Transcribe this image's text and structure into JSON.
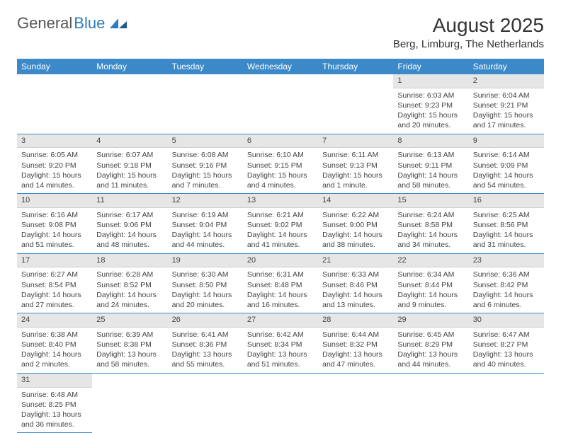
{
  "logo": {
    "text1": "General",
    "text2": "Blue"
  },
  "title": "August 2025",
  "location": "Berg, Limburg, The Netherlands",
  "colors": {
    "header_bg": "#3b89c9",
    "header_text": "#ffffff",
    "daynum_bg": "#e6e6e6",
    "border": "#3b89c9",
    "text": "#444444",
    "logo_blue": "#2f7bbf"
  },
  "day_headers": [
    "Sunday",
    "Monday",
    "Tuesday",
    "Wednesday",
    "Thursday",
    "Friday",
    "Saturday"
  ],
  "weeks": [
    [
      null,
      null,
      null,
      null,
      null,
      {
        "n": "1",
        "sr": "Sunrise: 6:03 AM",
        "ss": "Sunset: 9:23 PM",
        "dl1": "Daylight: 15 hours",
        "dl2": "and 20 minutes."
      },
      {
        "n": "2",
        "sr": "Sunrise: 6:04 AM",
        "ss": "Sunset: 9:21 PM",
        "dl1": "Daylight: 15 hours",
        "dl2": "and 17 minutes."
      }
    ],
    [
      {
        "n": "3",
        "sr": "Sunrise: 6:05 AM",
        "ss": "Sunset: 9:20 PM",
        "dl1": "Daylight: 15 hours",
        "dl2": "and 14 minutes."
      },
      {
        "n": "4",
        "sr": "Sunrise: 6:07 AM",
        "ss": "Sunset: 9:18 PM",
        "dl1": "Daylight: 15 hours",
        "dl2": "and 11 minutes."
      },
      {
        "n": "5",
        "sr": "Sunrise: 6:08 AM",
        "ss": "Sunset: 9:16 PM",
        "dl1": "Daylight: 15 hours",
        "dl2": "and 7 minutes."
      },
      {
        "n": "6",
        "sr": "Sunrise: 6:10 AM",
        "ss": "Sunset: 9:15 PM",
        "dl1": "Daylight: 15 hours",
        "dl2": "and 4 minutes."
      },
      {
        "n": "7",
        "sr": "Sunrise: 6:11 AM",
        "ss": "Sunset: 9:13 PM",
        "dl1": "Daylight: 15 hours",
        "dl2": "and 1 minute."
      },
      {
        "n": "8",
        "sr": "Sunrise: 6:13 AM",
        "ss": "Sunset: 9:11 PM",
        "dl1": "Daylight: 14 hours",
        "dl2": "and 58 minutes."
      },
      {
        "n": "9",
        "sr": "Sunrise: 6:14 AM",
        "ss": "Sunset: 9:09 PM",
        "dl1": "Daylight: 14 hours",
        "dl2": "and 54 minutes."
      }
    ],
    [
      {
        "n": "10",
        "sr": "Sunrise: 6:16 AM",
        "ss": "Sunset: 9:08 PM",
        "dl1": "Daylight: 14 hours",
        "dl2": "and 51 minutes."
      },
      {
        "n": "11",
        "sr": "Sunrise: 6:17 AM",
        "ss": "Sunset: 9:06 PM",
        "dl1": "Daylight: 14 hours",
        "dl2": "and 48 minutes."
      },
      {
        "n": "12",
        "sr": "Sunrise: 6:19 AM",
        "ss": "Sunset: 9:04 PM",
        "dl1": "Daylight: 14 hours",
        "dl2": "and 44 minutes."
      },
      {
        "n": "13",
        "sr": "Sunrise: 6:21 AM",
        "ss": "Sunset: 9:02 PM",
        "dl1": "Daylight: 14 hours",
        "dl2": "and 41 minutes."
      },
      {
        "n": "14",
        "sr": "Sunrise: 6:22 AM",
        "ss": "Sunset: 9:00 PM",
        "dl1": "Daylight: 14 hours",
        "dl2": "and 38 minutes."
      },
      {
        "n": "15",
        "sr": "Sunrise: 6:24 AM",
        "ss": "Sunset: 8:58 PM",
        "dl1": "Daylight: 14 hours",
        "dl2": "and 34 minutes."
      },
      {
        "n": "16",
        "sr": "Sunrise: 6:25 AM",
        "ss": "Sunset: 8:56 PM",
        "dl1": "Daylight: 14 hours",
        "dl2": "and 31 minutes."
      }
    ],
    [
      {
        "n": "17",
        "sr": "Sunrise: 6:27 AM",
        "ss": "Sunset: 8:54 PM",
        "dl1": "Daylight: 14 hours",
        "dl2": "and 27 minutes."
      },
      {
        "n": "18",
        "sr": "Sunrise: 6:28 AM",
        "ss": "Sunset: 8:52 PM",
        "dl1": "Daylight: 14 hours",
        "dl2": "and 24 minutes."
      },
      {
        "n": "19",
        "sr": "Sunrise: 6:30 AM",
        "ss": "Sunset: 8:50 PM",
        "dl1": "Daylight: 14 hours",
        "dl2": "and 20 minutes."
      },
      {
        "n": "20",
        "sr": "Sunrise: 6:31 AM",
        "ss": "Sunset: 8:48 PM",
        "dl1": "Daylight: 14 hours",
        "dl2": "and 16 minutes."
      },
      {
        "n": "21",
        "sr": "Sunrise: 6:33 AM",
        "ss": "Sunset: 8:46 PM",
        "dl1": "Daylight: 14 hours",
        "dl2": "and 13 minutes."
      },
      {
        "n": "22",
        "sr": "Sunrise: 6:34 AM",
        "ss": "Sunset: 8:44 PM",
        "dl1": "Daylight: 14 hours",
        "dl2": "and 9 minutes."
      },
      {
        "n": "23",
        "sr": "Sunrise: 6:36 AM",
        "ss": "Sunset: 8:42 PM",
        "dl1": "Daylight: 14 hours",
        "dl2": "and 6 minutes."
      }
    ],
    [
      {
        "n": "24",
        "sr": "Sunrise: 6:38 AM",
        "ss": "Sunset: 8:40 PM",
        "dl1": "Daylight: 14 hours",
        "dl2": "and 2 minutes."
      },
      {
        "n": "25",
        "sr": "Sunrise: 6:39 AM",
        "ss": "Sunset: 8:38 PM",
        "dl1": "Daylight: 13 hours",
        "dl2": "and 58 minutes."
      },
      {
        "n": "26",
        "sr": "Sunrise: 6:41 AM",
        "ss": "Sunset: 8:36 PM",
        "dl1": "Daylight: 13 hours",
        "dl2": "and 55 minutes."
      },
      {
        "n": "27",
        "sr": "Sunrise: 6:42 AM",
        "ss": "Sunset: 8:34 PM",
        "dl1": "Daylight: 13 hours",
        "dl2": "and 51 minutes."
      },
      {
        "n": "28",
        "sr": "Sunrise: 6:44 AM",
        "ss": "Sunset: 8:32 PM",
        "dl1": "Daylight: 13 hours",
        "dl2": "and 47 minutes."
      },
      {
        "n": "29",
        "sr": "Sunrise: 6:45 AM",
        "ss": "Sunset: 8:29 PM",
        "dl1": "Daylight: 13 hours",
        "dl2": "and 44 minutes."
      },
      {
        "n": "30",
        "sr": "Sunrise: 6:47 AM",
        "ss": "Sunset: 8:27 PM",
        "dl1": "Daylight: 13 hours",
        "dl2": "and 40 minutes."
      }
    ],
    [
      {
        "n": "31",
        "sr": "Sunrise: 6:48 AM",
        "ss": "Sunset: 8:25 PM",
        "dl1": "Daylight: 13 hours",
        "dl2": "and 36 minutes."
      },
      null,
      null,
      null,
      null,
      null,
      null
    ]
  ]
}
